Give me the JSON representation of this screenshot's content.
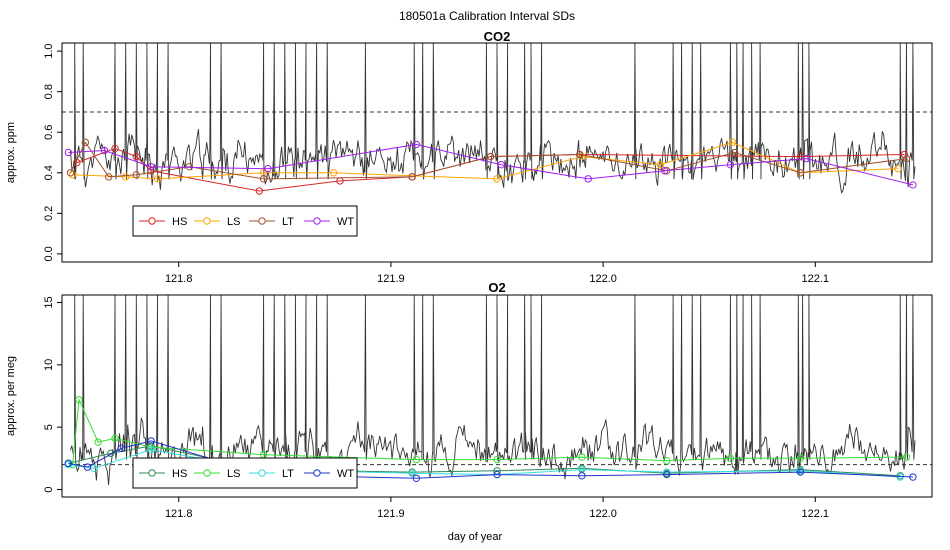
{
  "figure": {
    "title": "180501a   Calibration Interval SDs",
    "xlabel": "day of year",
    "colors": {
      "HS": "#d62728",
      "LS": "#ffa500",
      "LT": "#a0522d",
      "WT": "#a020f0",
      "trace": "#333333",
      "frame": "#000000"
    }
  },
  "chart_data": [
    {
      "type": "line",
      "title": "CO2",
      "ylabel": "approx. ppm",
      "xlim": [
        121.745,
        122.155
      ],
      "ylim": [
        -0.04,
        1.04
      ],
      "xticks": [
        121.8,
        121.9,
        122.0,
        122.1
      ],
      "xtick_labels": [
        "121.8",
        "121.9",
        "122.0",
        "122.1"
      ],
      "yticks": [
        0.0,
        0.2,
        0.4,
        0.6,
        0.8,
        1.0
      ],
      "ytick_labels": [
        "0.0",
        "0.2",
        "0.4",
        "0.6",
        "0.8",
        "1.0"
      ],
      "threshold": 0.7,
      "legend": {
        "placement": "bottom-left",
        "entries": [
          "HS",
          "LS",
          "LT",
          "WT"
        ],
        "colors": [
          "#d62728",
          "#ffa500",
          "#a0522d",
          "#a020f0"
        ]
      },
      "trace": {
        "baseline": 0.46,
        "amplitude": 0.09,
        "spike_top": 1.04,
        "seed": 11,
        "spikes": [
          121.751,
          121.755,
          121.77,
          121.775,
          121.78,
          121.785,
          121.79,
          121.795,
          121.815,
          121.82,
          121.84,
          121.845,
          121.85,
          121.855,
          121.86,
          121.865,
          121.87,
          121.888,
          121.911,
          121.915,
          121.92,
          121.945,
          121.95,
          121.955,
          121.963,
          121.966,
          121.971,
          122.015,
          122.033,
          122.037,
          122.042,
          122.046,
          122.06,
          122.063,
          122.066,
          122.07,
          122.074,
          122.092,
          122.094,
          122.097,
          122.14,
          122.143,
          122.146
        ]
      },
      "series": [
        {
          "name": "HS",
          "x": [
            121.752,
            121.77,
            121.78,
            121.787,
            121.838,
            121.876,
            121.91,
            121.947,
            121.989,
            122.093,
            122.142
          ],
          "y": [
            0.45,
            0.52,
            0.48,
            0.41,
            0.31,
            0.36,
            0.38,
            0.48,
            0.49,
            0.48,
            0.49
          ]
        },
        {
          "name": "LS",
          "x": [
            121.75,
            121.775,
            121.79,
            121.84,
            121.873,
            121.95,
            121.99,
            122.027,
            122.061,
            122.093,
            122.139
          ],
          "y": [
            0.39,
            0.38,
            0.37,
            0.4,
            0.4,
            0.37,
            0.48,
            0.44,
            0.55,
            0.4,
            0.42
          ]
        },
        {
          "name": "LT",
          "x": [
            121.749,
            121.756,
            121.767,
            121.78,
            121.805,
            121.84,
            121.91,
            121.947,
            121.989,
            122.03,
            122.062,
            122.093,
            122.143
          ],
          "y": [
            0.4,
            0.55,
            0.38,
            0.39,
            0.43,
            0.37,
            0.38,
            0.48,
            0.49,
            0.41,
            0.5,
            0.4,
            0.47
          ]
        },
        {
          "name": "WT",
          "x": [
            121.748,
            121.765,
            121.787,
            121.842,
            121.912,
            121.952,
            121.993,
            122.029,
            122.06,
            122.096,
            122.146
          ],
          "y": [
            0.5,
            0.51,
            0.43,
            0.42,
            0.54,
            0.44,
            0.37,
            0.41,
            0.44,
            0.47,
            0.34
          ]
        }
      ]
    },
    {
      "type": "line",
      "title": "O2",
      "ylabel": "approx. per meg",
      "xlim": [
        121.745,
        122.155
      ],
      "ylim": [
        -0.6,
        15.6
      ],
      "xticks": [
        121.8,
        121.9,
        122.0,
        122.1
      ],
      "xtick_labels": [
        "121.8",
        "121.9",
        "122.0",
        "122.1"
      ],
      "yticks": [
        0,
        5,
        10,
        15
      ],
      "ytick_labels": [
        "0",
        "5",
        "10",
        "15"
      ],
      "threshold": 2,
      "legend": {
        "placement": "bottom-left",
        "entries": [
          "HS",
          "LS",
          "LT",
          "WT"
        ],
        "colors": [
          "#2e8b57",
          "#33dd33",
          "#33dddd",
          "#2233cc"
        ]
      },
      "trace": {
        "baseline": 3.0,
        "amplitude": 1.4,
        "spike_top": 15.6,
        "seed": 29,
        "spikes": [
          121.751,
          121.755,
          121.77,
          121.775,
          121.78,
          121.785,
          121.79,
          121.795,
          121.815,
          121.82,
          121.84,
          121.845,
          121.85,
          121.855,
          121.86,
          121.865,
          121.87,
          121.888,
          121.911,
          121.915,
          121.92,
          121.945,
          121.95,
          121.955,
          121.963,
          121.966,
          121.971,
          122.015,
          122.033,
          122.037,
          122.042,
          122.046,
          122.06,
          122.063,
          122.066,
          122.07,
          122.074,
          122.092,
          122.094,
          122.097,
          122.14,
          122.143,
          122.146
        ]
      },
      "series": [
        {
          "name": "HS",
          "x": [
            121.748,
            121.768,
            121.787,
            121.84,
            121.91,
            121.95,
            121.99,
            122.03,
            122.093,
            122.14
          ],
          "y": [
            2.1,
            2.9,
            3.5,
            1.6,
            1.4,
            1.5,
            1.7,
            1.3,
            1.6,
            1.1
          ]
        },
        {
          "name": "LS",
          "x": [
            121.75,
            121.753,
            121.762,
            121.77,
            121.787,
            121.84,
            121.912,
            121.95,
            121.99,
            122.03,
            122.06,
            122.093,
            122.143
          ],
          "y": [
            2.0,
            7.2,
            3.8,
            4.1,
            3.4,
            2.8,
            2.4,
            2.4,
            2.6,
            2.3,
            2.5,
            2.5,
            2.6
          ]
        },
        {
          "name": "LT",
          "x": [
            121.748,
            121.76,
            121.787,
            121.84,
            121.91,
            121.95,
            121.99,
            122.03,
            122.093,
            122.14
          ],
          "y": [
            2.0,
            1.7,
            3.2,
            1.6,
            1.3,
            1.2,
            1.6,
            1.4,
            1.5,
            1.0
          ]
        },
        {
          "name": "WT",
          "x": [
            121.748,
            121.757,
            121.773,
            121.787,
            121.84,
            121.912,
            121.95,
            121.99,
            122.03,
            122.093,
            122.146
          ],
          "y": [
            2.1,
            1.8,
            3.3,
            3.9,
            1.2,
            0.9,
            1.2,
            1.1,
            1.2,
            1.4,
            1.0
          ]
        }
      ]
    }
  ]
}
